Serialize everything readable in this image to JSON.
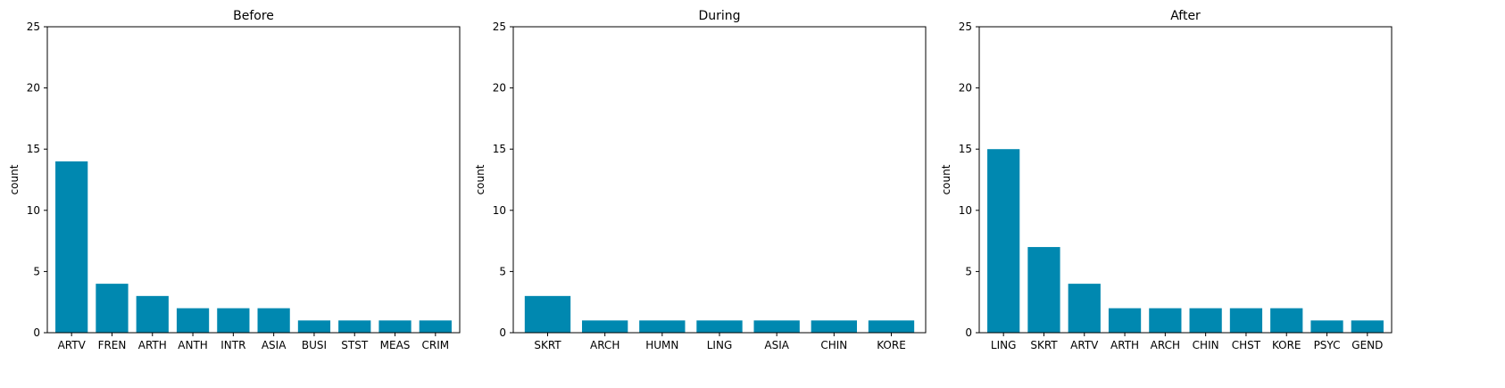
{
  "colors": {
    "bar": "#0088b0",
    "axis": "#000000",
    "background": "#ffffff"
  },
  "chart_data": [
    {
      "type": "bar",
      "title": "Before",
      "xlabel": "",
      "ylabel": "count",
      "ylim": [
        0,
        25
      ],
      "yticks": [
        0,
        5,
        10,
        15,
        20,
        25
      ],
      "grid": false,
      "categories": [
        "ARTV",
        "FREN",
        "ARTH",
        "ANTH",
        "INTR",
        "ASIA",
        "BUSI",
        "STST",
        "MEAS",
        "CRIM"
      ],
      "values": [
        14,
        4,
        3,
        2,
        2,
        2,
        1,
        1,
        1,
        1
      ]
    },
    {
      "type": "bar",
      "title": "During",
      "xlabel": "",
      "ylabel": "count",
      "ylim": [
        0,
        25
      ],
      "yticks": [
        0,
        5,
        10,
        15,
        20,
        25
      ],
      "grid": false,
      "categories": [
        "SKRT",
        "ARCH",
        "HUMN",
        "LING",
        "ASIA",
        "CHIN",
        "KORE"
      ],
      "values": [
        3,
        1,
        1,
        1,
        1,
        1,
        1
      ]
    },
    {
      "type": "bar",
      "title": "After",
      "xlabel": "",
      "ylabel": "count",
      "ylim": [
        0,
        25
      ],
      "yticks": [
        0,
        5,
        10,
        15,
        20,
        25
      ],
      "grid": false,
      "categories": [
        "LING",
        "SKRT",
        "ARTV",
        "ARTH",
        "ARCH",
        "CHIN",
        "CHST",
        "KORE",
        "PSYC",
        "GEND"
      ],
      "values": [
        15,
        7,
        4,
        2,
        2,
        2,
        2,
        2,
        1,
        1
      ]
    }
  ]
}
